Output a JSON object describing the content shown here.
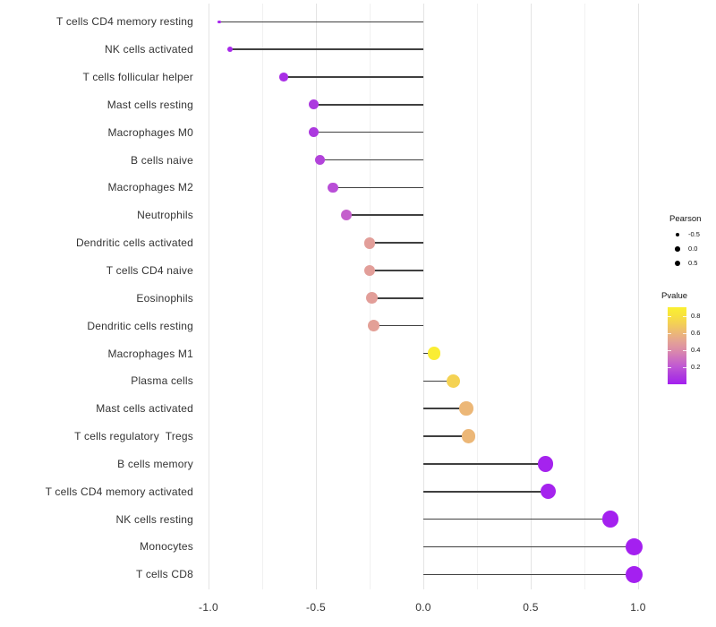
{
  "figure": {
    "background": "#FFFFFF"
  },
  "chart_data": {
    "type": "lollipop",
    "orientation": "horizontal",
    "title": "",
    "xlabel": "",
    "ylabel": "",
    "x_axis": {
      "tick_values": [
        -1.0,
        -0.5,
        0.0,
        0.5,
        1.0
      ],
      "tick_labels": [
        "-1.0",
        "-0.5",
        "0.0",
        "0.5",
        "1.0"
      ],
      "minor_tick_values": [
        -0.75,
        -0.25,
        0.25,
        0.75
      ],
      "limits": [
        -1.05,
        1.08
      ],
      "grid": "vertical-only"
    },
    "points": [
      {
        "label": "T cells CD4 memory resting",
        "pearson": -0.95,
        "pvalue": 0.02
      },
      {
        "label": "NK cells activated",
        "pearson": -0.9,
        "pvalue": 0.03
      },
      {
        "label": "T cells follicular helper",
        "pearson": -0.65,
        "pvalue": 0.05
      },
      {
        "label": "Mast cells resting",
        "pearson": -0.51,
        "pvalue": 0.09
      },
      {
        "label": "Macrophages M0",
        "pearson": -0.51,
        "pvalue": 0.09
      },
      {
        "label": "B cells naive",
        "pearson": -0.48,
        "pvalue": 0.13
      },
      {
        "label": "Macrophages M2",
        "pearson": -0.42,
        "pvalue": 0.17
      },
      {
        "label": "Neutrophils",
        "pearson": -0.36,
        "pvalue": 0.24
      },
      {
        "label": "Dendritic cells activated",
        "pearson": -0.25,
        "pvalue": 0.48
      },
      {
        "label": "T cells CD4 naive",
        "pearson": -0.25,
        "pvalue": 0.48
      },
      {
        "label": "Eosinophils",
        "pearson": -0.24,
        "pvalue": 0.48
      },
      {
        "label": "Dendritic cells resting",
        "pearson": -0.23,
        "pvalue": 0.49
      },
      {
        "label": "Macrophages M1",
        "pearson": 0.05,
        "pvalue": 0.88
      },
      {
        "label": "Plasma cells",
        "pearson": 0.14,
        "pvalue": 0.72
      },
      {
        "label": "Mast cells activated",
        "pearson": 0.2,
        "pvalue": 0.6
      },
      {
        "label": "T cells regulatory  Tregs",
        "pearson": 0.21,
        "pvalue": 0.6
      },
      {
        "label": "B cells memory",
        "pearson": 0.57,
        "pvalue": 0.01
      },
      {
        "label": "T cells CD4 memory activated",
        "pearson": 0.58,
        "pvalue": 0.01
      },
      {
        "label": "NK cells resting",
        "pearson": 0.87,
        "pvalue": 0.005
      },
      {
        "label": "Monocytes",
        "pearson": 0.98,
        "pvalue": 0.001
      },
      {
        "label": "T cells CD8",
        "pearson": 0.98,
        "pvalue": 0.001
      }
    ],
    "legend_size": {
      "title": "Pearson",
      "entries": [
        {
          "label": "-0.5",
          "value": -0.5
        },
        {
          "label": "0.0",
          "value": 0.0
        },
        {
          "label": "0.5",
          "value": 0.5
        }
      ]
    },
    "legend_color": {
      "title": "Pvalue",
      "tick_labels": [
        "0.8",
        "0.6",
        "0.4",
        "0.2"
      ],
      "tick_values": [
        0.8,
        0.6,
        0.4,
        0.2
      ],
      "range": [
        0.0,
        0.9
      ]
    },
    "colors": {
      "point_low": "#A420F0",
      "point_high": "#FAF032",
      "segment": "#404040",
      "grid_major": "#E4E4E4",
      "grid_minor": "#F1F1F1",
      "axis_text": "#333333",
      "gradient_stops": [
        {
          "pos": 0.0,
          "color": "#A420F0"
        },
        {
          "pos": 0.11,
          "color": "#AD3BDD"
        },
        {
          "pos": 0.22,
          "color": "#BE55D5"
        },
        {
          "pos": 0.33,
          "color": "#CD70C0"
        },
        {
          "pos": 0.44,
          "color": "#DB8BAA"
        },
        {
          "pos": 0.56,
          "color": "#E4A394"
        },
        {
          "pos": 0.67,
          "color": "#ECB876"
        },
        {
          "pos": 0.78,
          "color": "#F3CE58"
        },
        {
          "pos": 0.89,
          "color": "#F8E23E"
        },
        {
          "pos": 1.0,
          "color": "#FAF032"
        }
      ]
    }
  }
}
